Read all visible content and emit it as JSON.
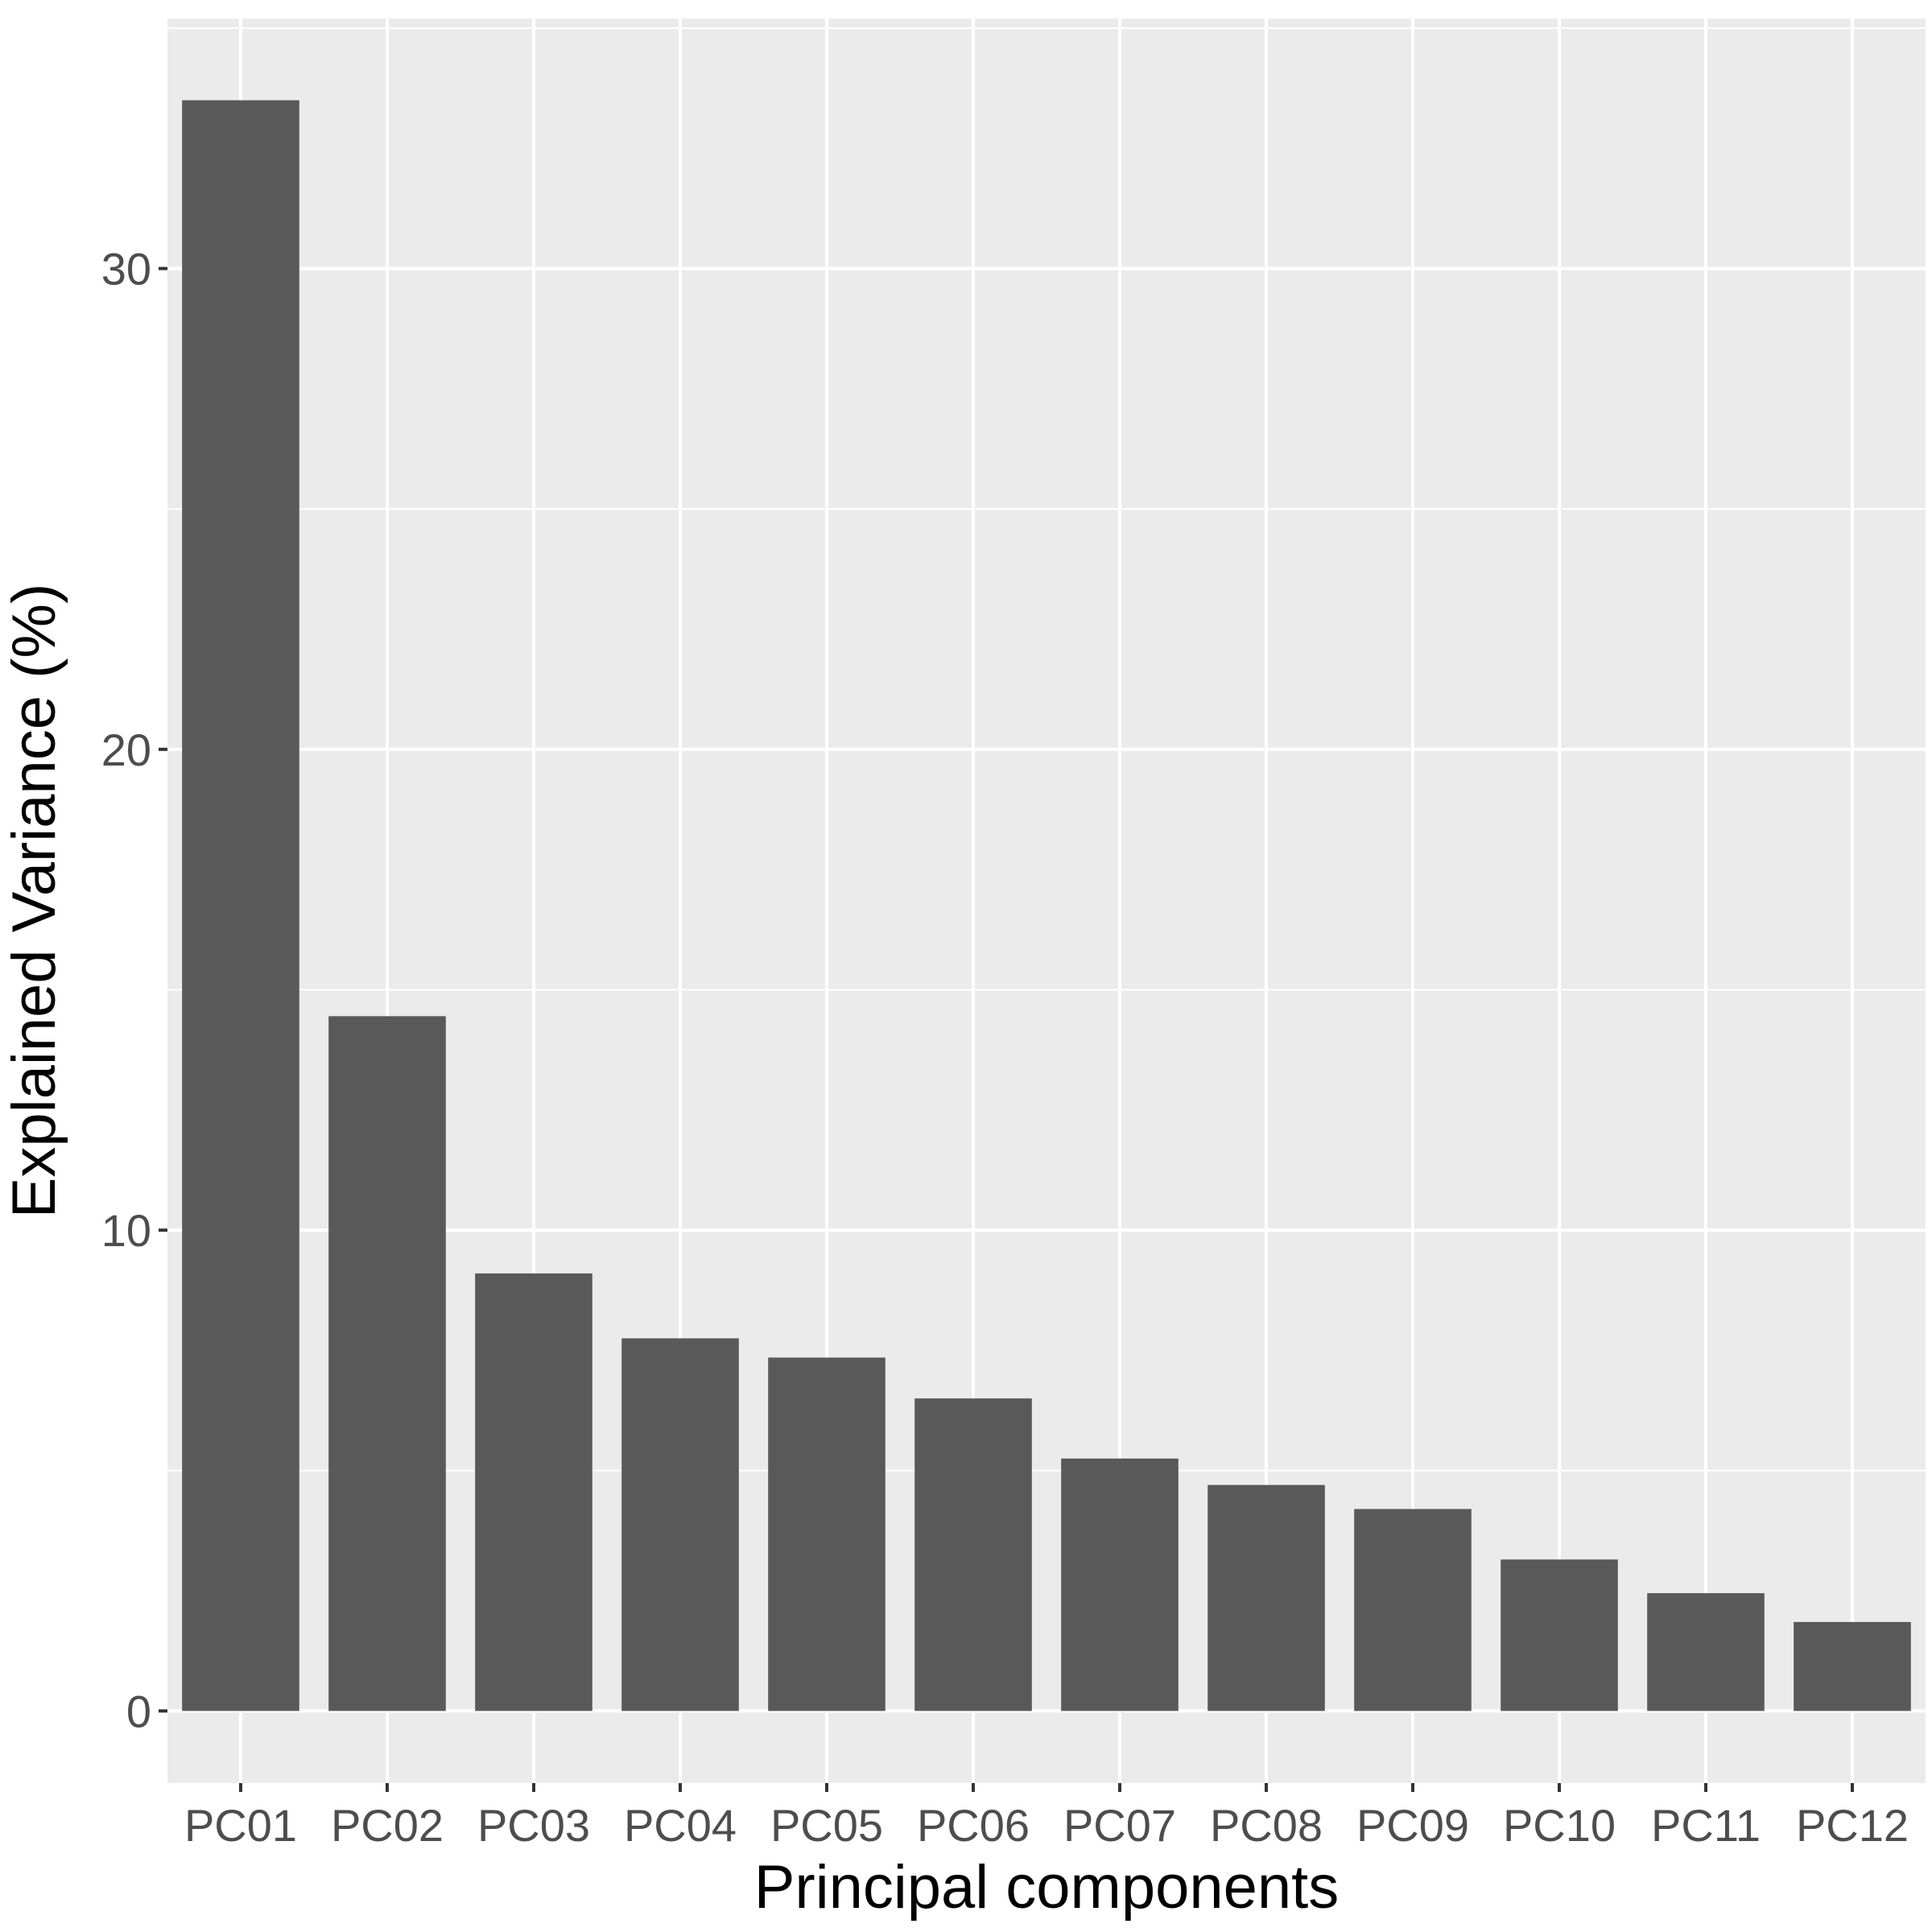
{
  "chart_data": {
    "type": "bar",
    "title": "",
    "xlabel": "Principal components",
    "ylabel": "Explained Variance (%)",
    "categories": [
      "PC01",
      "PC02",
      "PC03",
      "PC04",
      "PC05",
      "PC06",
      "PC07",
      "PC08",
      "PC09",
      "PC10",
      "PC11",
      "PC12"
    ],
    "values": [
      33.5,
      14.45,
      9.1,
      7.75,
      7.35,
      6.5,
      5.25,
      4.7,
      4.2,
      3.15,
      2.45,
      1.85
    ],
    "ylim": [
      -1.5,
      35.2
    ],
    "yticks": [
      0,
      10,
      20,
      30
    ],
    "ytick_labels": [
      "0",
      "10",
      "20",
      "30"
    ],
    "grid": true,
    "colors": {
      "bar": "#595959",
      "panel": "#ebebeb",
      "grid": "#ffffff",
      "tick": "#333333"
    }
  }
}
